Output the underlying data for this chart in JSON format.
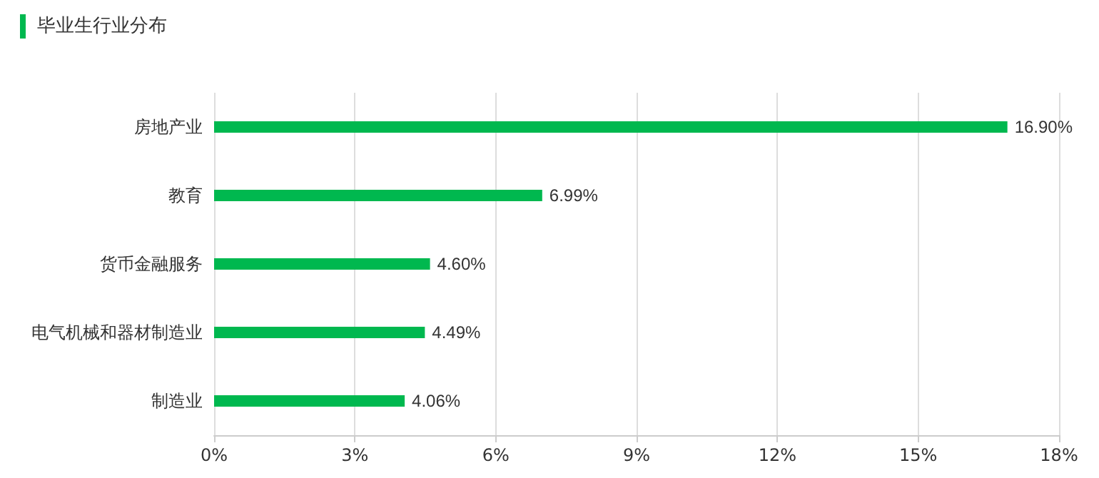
{
  "chart_data": {
    "type": "bar",
    "title": "毕业生行业分布",
    "orientation": "horizontal",
    "categories": [
      "房地产业",
      "教育",
      "货币金融服务",
      "电气机械和器材制造业",
      "制造业"
    ],
    "values": [
      16.9,
      6.99,
      4.6,
      4.49,
      4.06
    ],
    "value_labels": [
      "16.90%",
      "6.99%",
      "4.60%",
      "4.49%",
      "4.06%"
    ],
    "color": "#00b84f",
    "xlim": [
      0,
      18
    ],
    "xticks": [
      {
        "value": 0,
        "label": "0%"
      },
      {
        "value": 3,
        "label": "3%"
      },
      {
        "value": 6,
        "label": "6%"
      },
      {
        "value": 9,
        "label": "9%"
      },
      {
        "value": 12,
        "label": "12%"
      },
      {
        "value": 15,
        "label": "15%"
      },
      {
        "value": 18,
        "label": "18%"
      }
    ],
    "grid": "x"
  }
}
